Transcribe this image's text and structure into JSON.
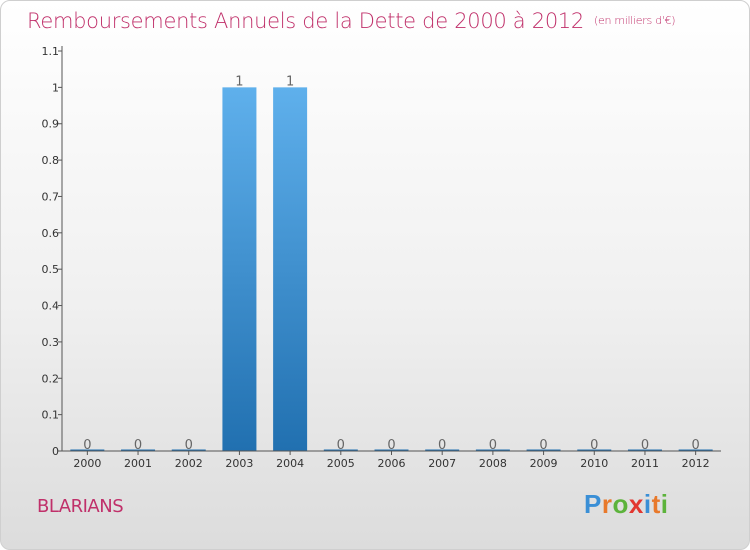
{
  "title": "Remboursements Annuels de la Dette de 2000 à 2012",
  "title_unit": "(en milliers d'€)",
  "commune": "BLARIANS",
  "brand": {
    "letters": [
      "P",
      "r",
      "o",
      "x",
      "i",
      "t",
      "i"
    ],
    "colors": [
      "#3a8fd6",
      "#e8792b",
      "#5cb33b",
      "#e2362f",
      "#3a8fd6",
      "#e8792b",
      "#5cb33b"
    ]
  },
  "colors": {
    "title": "#c0306a",
    "bar_top": "#5fb0ec",
    "bar_bottom": "#2170b0",
    "axis": "#555555",
    "grid_tick": "#888888"
  },
  "chart_data": {
    "type": "bar",
    "categories": [
      "2000",
      "2001",
      "2002",
      "2003",
      "2004",
      "2005",
      "2006",
      "2007",
      "2008",
      "2009",
      "2010",
      "2011",
      "2012"
    ],
    "values": [
      0,
      0,
      0,
      1,
      1,
      0,
      0,
      0,
      0,
      0,
      0,
      0,
      0
    ],
    "data_labels": [
      "0",
      "0",
      "0",
      "1",
      "1",
      "0",
      "0",
      "0",
      "0",
      "0",
      "0",
      "0",
      "0"
    ],
    "yticks": [
      {
        "value": 0,
        "label": "0"
      },
      {
        "value": 0.1,
        "label": "0.1"
      },
      {
        "value": 0.2,
        "label": "0.2"
      },
      {
        "value": 0.3,
        "label": "0.3"
      },
      {
        "value": 0.4,
        "label": "0.4"
      },
      {
        "value": 0.5,
        "label": "0.5"
      },
      {
        "value": 0.6,
        "label": "0.6"
      },
      {
        "value": 0.7,
        "label": "0.7"
      },
      {
        "value": 0.8,
        "label": "0.8"
      },
      {
        "value": 0.9,
        "label": "0.9"
      },
      {
        "value": 1,
        "label": "1"
      },
      {
        "value": 1.1,
        "label": "1.1"
      }
    ],
    "ylim": [
      0,
      1.1
    ],
    "xlabel": "",
    "ylabel": "",
    "grid": false
  }
}
